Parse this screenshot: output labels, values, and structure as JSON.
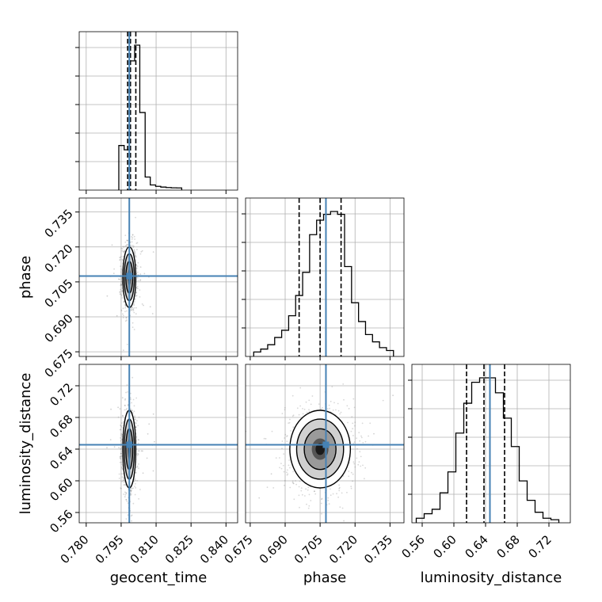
{
  "chart_data": {
    "type": "corner",
    "parameters": [
      "geocent_time",
      "phase",
      "luminosity_distance"
    ],
    "axis_labels": {
      "x": [
        "geocent_time",
        "phase",
        "luminosity_distance"
      ],
      "y": [
        "",
        "phase",
        "luminosity_distance"
      ]
    },
    "ranges": {
      "geocent_time": [
        0.777,
        0.845
      ],
      "phase": [
        0.673,
        0.741
      ],
      "luminosity_distance": [
        0.547,
        0.747
      ]
    },
    "ticks": {
      "geocent_time": [
        0.78,
        0.795,
        0.81,
        0.825,
        0.84
      ],
      "phase": [
        0.675,
        0.69,
        0.705,
        0.72,
        0.735
      ],
      "luminosity_distance": [
        0.56,
        0.6,
        0.64,
        0.68,
        0.72
      ]
    },
    "tick_labels": {
      "geocent_time": [
        "0.780",
        "0.795",
        "0.810",
        "0.825",
        "0.840"
      ],
      "phase": [
        "0.675",
        "0.690",
        "0.705",
        "0.720",
        "0.735"
      ],
      "luminosity_distance": [
        "0.56",
        "0.60",
        "0.64",
        "0.68",
        "0.72"
      ]
    },
    "truths": {
      "geocent_time": 0.7985,
      "phase": 0.7075,
      "luminosity_distance": 0.6455
    },
    "quantiles": {
      "geocent_time": [
        0.7978,
        0.799,
        0.8013
      ],
      "phase": [
        0.696,
        0.705,
        0.714
      ],
      "luminosity_distance": [
        0.616,
        0.638,
        0.664
      ]
    },
    "histograms": {
      "geocent_time": {
        "edges": [
          0.794,
          0.7963,
          0.7985,
          0.8008,
          0.803,
          0.8053,
          0.8075,
          0.8098,
          0.812,
          0.8143,
          0.8165,
          0.8188,
          0.821
        ],
        "counts": [
          0.3,
          0.27,
          0.89,
          1.0,
          0.53,
          0.08,
          0.025,
          0.015,
          0.01,
          0.007,
          0.005,
          0.004
        ]
      },
      "phase": {
        "edges": [
          0.6765,
          0.6795,
          0.6825,
          0.6855,
          0.6885,
          0.6915,
          0.6945,
          0.6975,
          0.7005,
          0.7035,
          0.7065,
          0.7095,
          0.7125,
          0.7155,
          0.7185,
          0.7215,
          0.7245,
          0.7275,
          0.7305,
          0.7335,
          0.7365
        ],
        "counts": [
          0.02,
          0.04,
          0.07,
          0.12,
          0.17,
          0.27,
          0.41,
          0.57,
          0.83,
          0.93,
          0.97,
          0.99,
          0.97,
          0.61,
          0.36,
          0.23,
          0.14,
          0.09,
          0.05,
          0.03
        ]
      },
      "luminosity_distance": {
        "edges": [
          0.5525,
          0.5625,
          0.5725,
          0.5825,
          0.5925,
          0.6025,
          0.6125,
          0.6225,
          0.6325,
          0.6425,
          0.6525,
          0.6625,
          0.6725,
          0.6825,
          0.6925,
          0.7025,
          0.7125,
          0.7225,
          0.7325
        ],
        "counts": [
          0.02,
          0.05,
          0.08,
          0.19,
          0.33,
          0.59,
          0.79,
          0.93,
          0.96,
          0.96,
          0.86,
          0.69,
          0.5,
          0.27,
          0.14,
          0.06,
          0.02,
          0.01
        ]
      }
    },
    "contours_2d": {
      "geocent_time__phase": {
        "center": [
          0.7985,
          0.707
        ],
        "sigma": [
          0.0014,
          0.0065
        ]
      },
      "geocent_time__luminosity_distance": {
        "center": [
          0.7985,
          0.64
        ],
        "sigma": [
          0.0014,
          0.0245
        ]
      },
      "phase__luminosity_distance": {
        "center": [
          0.705,
          0.64
        ],
        "sigma": [
          0.0065,
          0.0245
        ]
      }
    },
    "grid": true,
    "colors": {
      "truth": "#4682b4",
      "histogram": "#000000",
      "quantile": "#000000",
      "scatter": "#7f7f7f",
      "grid": "#b0b0b0"
    }
  }
}
